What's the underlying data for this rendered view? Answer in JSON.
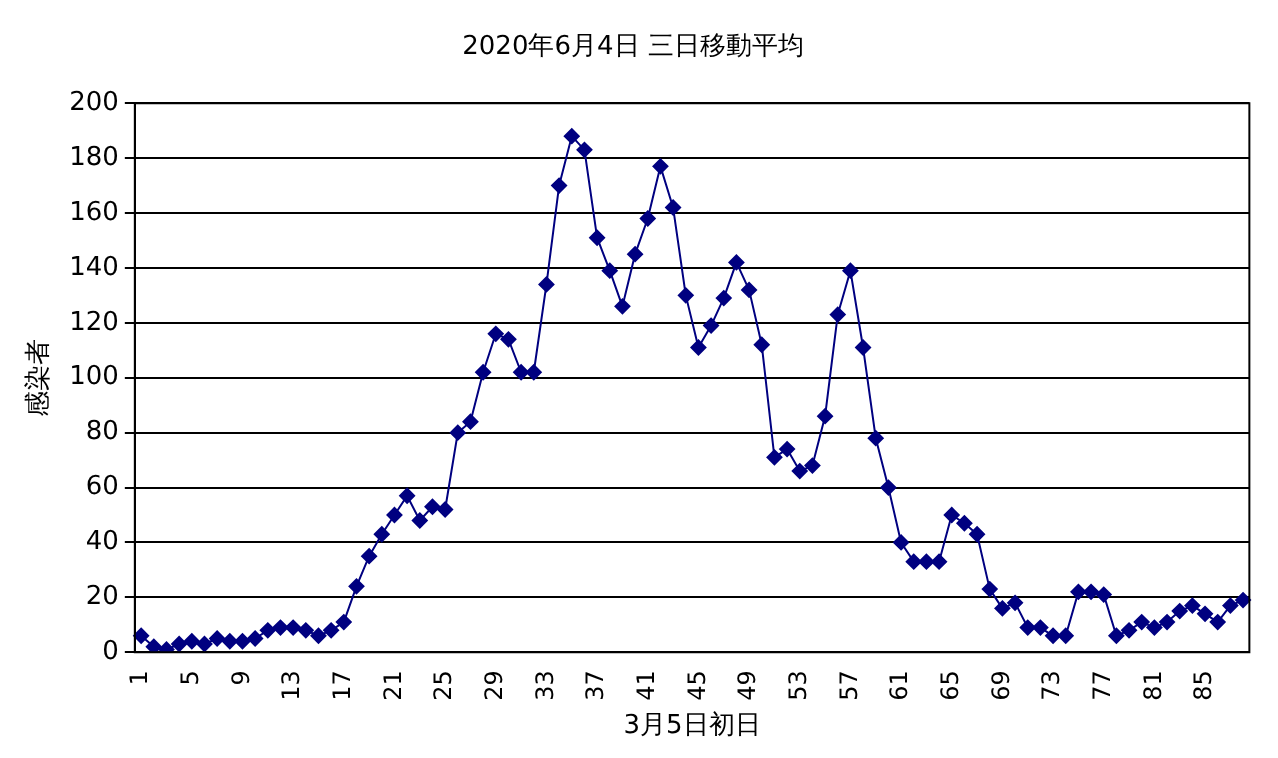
{
  "chart_data": {
    "type": "line",
    "title": "2020年6月4日 三日移動平均",
    "xlabel": "3月5日初日",
    "ylabel": "感染者",
    "categories": [
      "1",
      null,
      null,
      null,
      "5",
      null,
      null,
      null,
      "9",
      null,
      null,
      null,
      "13",
      null,
      null,
      null,
      "17",
      null,
      null,
      null,
      "21",
      null,
      null,
      null,
      "25",
      null,
      null,
      null,
      "29",
      null,
      null,
      null,
      "33",
      null,
      null,
      null,
      "37",
      null,
      null,
      null,
      "41",
      null,
      null,
      null,
      "45",
      null,
      null,
      null,
      "49",
      null,
      null,
      null,
      "53",
      null,
      null,
      null,
      "57",
      null,
      null,
      null,
      "61",
      null,
      null,
      null,
      "65",
      null,
      null,
      null,
      "69",
      null,
      null,
      null,
      "73",
      null,
      null,
      null,
      "77",
      null,
      null,
      null,
      "81",
      null,
      null,
      null,
      "85",
      null,
      null,
      null
    ],
    "series": [
      {
        "color": "#000080",
        "values": [
          6,
          2,
          1,
          3,
          4,
          3,
          5,
          4,
          4,
          5,
          8,
          9,
          9,
          8,
          6,
          8,
          11,
          24,
          35,
          43,
          50,
          57,
          48,
          53,
          52,
          80,
          84,
          102,
          116,
          114,
          102,
          102,
          134,
          170,
          188,
          183,
          151,
          139,
          126,
          145,
          158,
          177,
          162,
          130,
          111,
          119,
          129,
          142,
          132,
          112,
          71,
          74,
          66,
          68,
          86,
          123,
          139,
          111,
          78,
          60,
          40,
          33,
          33,
          33,
          50,
          47,
          43,
          23,
          16,
          18,
          9,
          9,
          6,
          6,
          22,
          22,
          21,
          6,
          8,
          11,
          9,
          11,
          15,
          17,
          14,
          11,
          17,
          19
        ]
      }
    ],
    "ylim": [
      0,
      200
    ],
    "yticks": [
      0,
      20,
      40,
      60,
      80,
      100,
      120,
      140,
      160,
      180,
      200
    ],
    "grid": "y",
    "legend": false,
    "marker": "diamond",
    "line_style": "solid"
  }
}
